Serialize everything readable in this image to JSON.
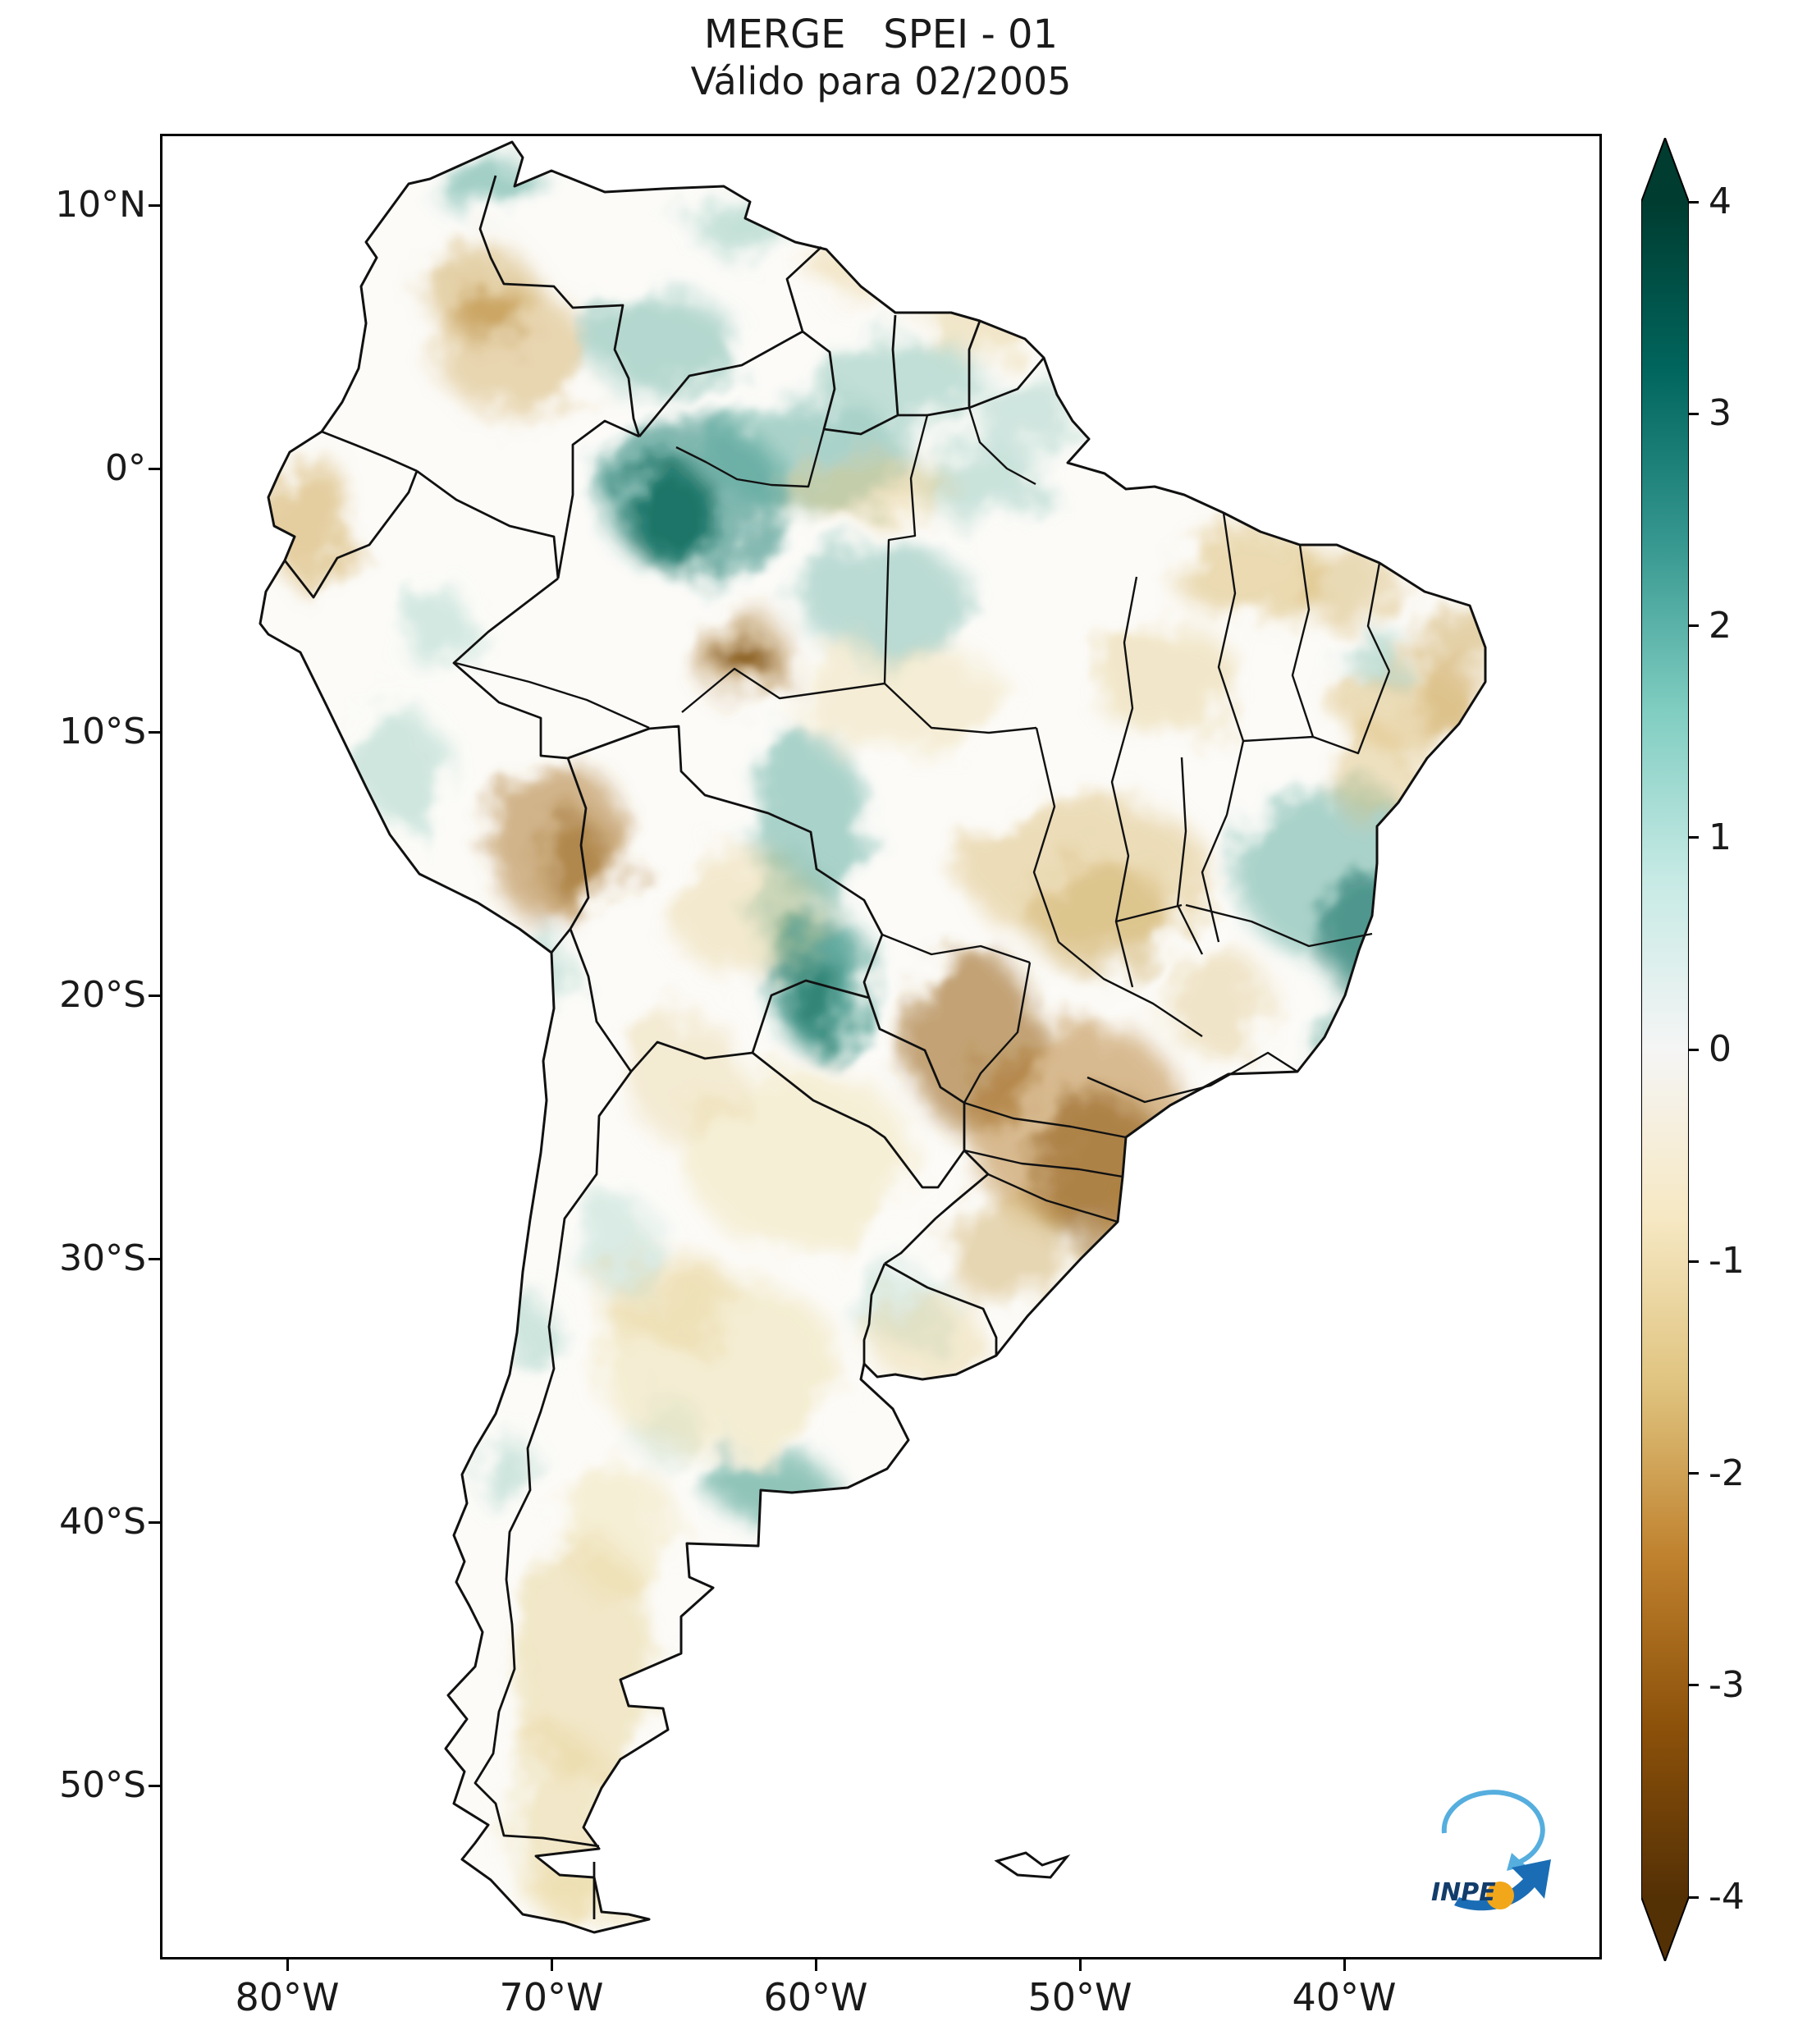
{
  "figure": {
    "title_line1": "MERGE   SPEI - 01",
    "title_line2": "Válido para 02/2005"
  },
  "map": {
    "region_depicted": "South America"
  },
  "axes": {
    "y_tick_labels": [
      "10°N",
      "0°",
      "10°S",
      "20°S",
      "30°S",
      "40°S",
      "50°S"
    ],
    "x_tick_labels": [
      "80°W",
      "70°W",
      "60°W",
      "50°W",
      "40°W"
    ]
  },
  "colorbar": {
    "tick_labels": [
      "4",
      "3",
      "2",
      "1",
      "0",
      "-1",
      "-2",
      "-3",
      "-4"
    ],
    "value_range": [
      -4,
      4
    ],
    "gradient_top_to_bottom": [
      "#003c30",
      "#01665e",
      "#35978f",
      "#80cdc1",
      "#c7eae5",
      "#f5f5f5",
      "#f6e8c3",
      "#dfc27d",
      "#bf812d",
      "#8c510a",
      "#543005"
    ]
  },
  "logo": {
    "label": "INPE"
  }
}
